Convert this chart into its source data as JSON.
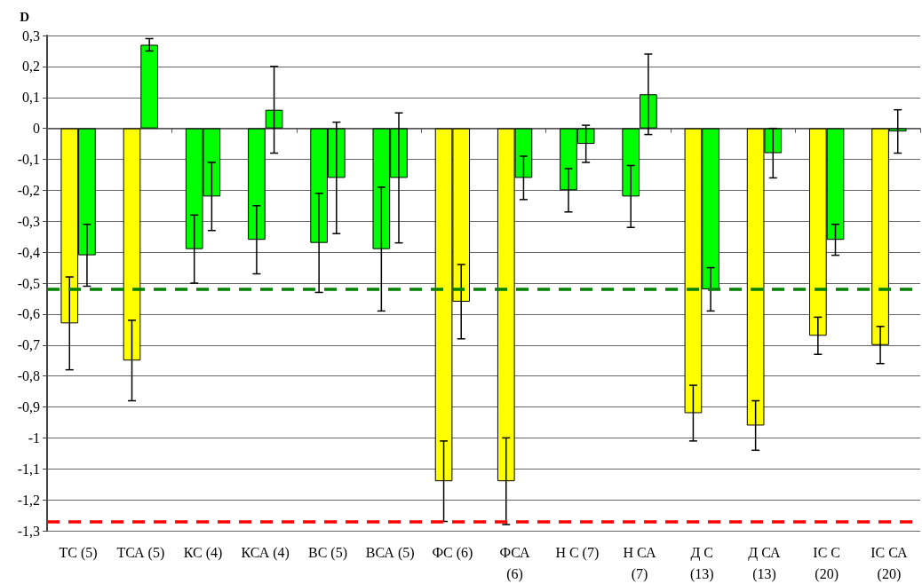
{
  "chart_data": {
    "type": "bar",
    "ylabel": "D",
    "categories": [
      "ТС (5)",
      "ТСА (5)",
      "КС (4)",
      "КСА (4)",
      "ВС (5)",
      "ВСА (5)",
      "ФС (6)",
      "ФСА (6)",
      "Н С (7)",
      "Н СА (7)",
      "Д С (13)",
      "Д СА (13)",
      "ІС С (20)",
      "ІС СА (20)"
    ],
    "series": [
      {
        "colors": [
          "#ffff00",
          "#ffff00",
          "#00ff00",
          "#00ff00",
          "#00ff00",
          "#00ff00",
          "#ffff00",
          "#ffff00",
          "#00ff00",
          "#00ff00",
          "#ffff00",
          "#ffff00",
          "#ffff00",
          "#ffff00"
        ],
        "values": [
          -0.63,
          -0.75,
          -0.39,
          -0.36,
          -0.37,
          -0.39,
          -1.14,
          -1.14,
          -0.2,
          -0.22,
          -0.92,
          -0.96,
          -0.67,
          -0.7
        ],
        "errors": [
          0.15,
          0.13,
          0.11,
          0.11,
          0.16,
          0.2,
          0.13,
          0.14,
          0.07,
          0.1,
          0.09,
          0.08,
          0.06,
          0.06
        ]
      },
      {
        "colors": [
          "#00ff00",
          "#00ff00",
          "#00ff00",
          "#00ff00",
          "#00ff00",
          "#00ff00",
          "#ffff00",
          "#00ff00",
          "#00ff00",
          "#00ff00",
          "#00ff00",
          "#00ff00",
          "#00ff00",
          "#00ff00"
        ],
        "values": [
          -0.41,
          0.27,
          -0.22,
          0.06,
          -0.16,
          -0.16,
          -0.56,
          -0.16,
          -0.05,
          0.11,
          -0.52,
          -0.08,
          -0.36,
          -0.01
        ],
        "errors": [
          0.1,
          0.02,
          0.11,
          0.14,
          0.18,
          0.21,
          0.12,
          0.07,
          0.06,
          0.13,
          0.07,
          0.08,
          0.05,
          0.07
        ]
      }
    ],
    "ylim": [
      -1.3,
      0.3
    ],
    "yticks": [
      {
        "value": 0.3,
        "label": "0,3"
      },
      {
        "value": 0.2,
        "label": "0,2"
      },
      {
        "value": 0.1,
        "label": "0,1"
      },
      0,
      {
        "value": -0.1,
        "label": "-0,1"
      },
      {
        "value": -0.2,
        "label": "-0,2"
      },
      {
        "value": -0.3,
        "label": "-0,3"
      },
      {
        "value": -0.4,
        "label": "-0,4"
      },
      {
        "value": -0.5,
        "label": "-0,5"
      },
      {
        "value": -0.6,
        "label": "-0,6"
      },
      {
        "value": -0.7,
        "label": "-0,7"
      },
      {
        "value": -0.8,
        "label": "-0,8"
      },
      {
        "value": -0.9,
        "label": "-0,9"
      },
      -1,
      {
        "value": -1.1,
        "label": "-1,1"
      },
      {
        "value": -1.2,
        "label": "-1,2"
      },
      {
        "value": -1.3,
        "label": "-1,3"
      }
    ],
    "grid": "y",
    "ref_lines": [
      {
        "axis": "y",
        "value": -0.52,
        "color": "#008000",
        "line_style": "dashed"
      },
      {
        "axis": "y",
        "value": -1.27,
        "color": "#ff0000",
        "line_style": "dashed"
      }
    ]
  }
}
